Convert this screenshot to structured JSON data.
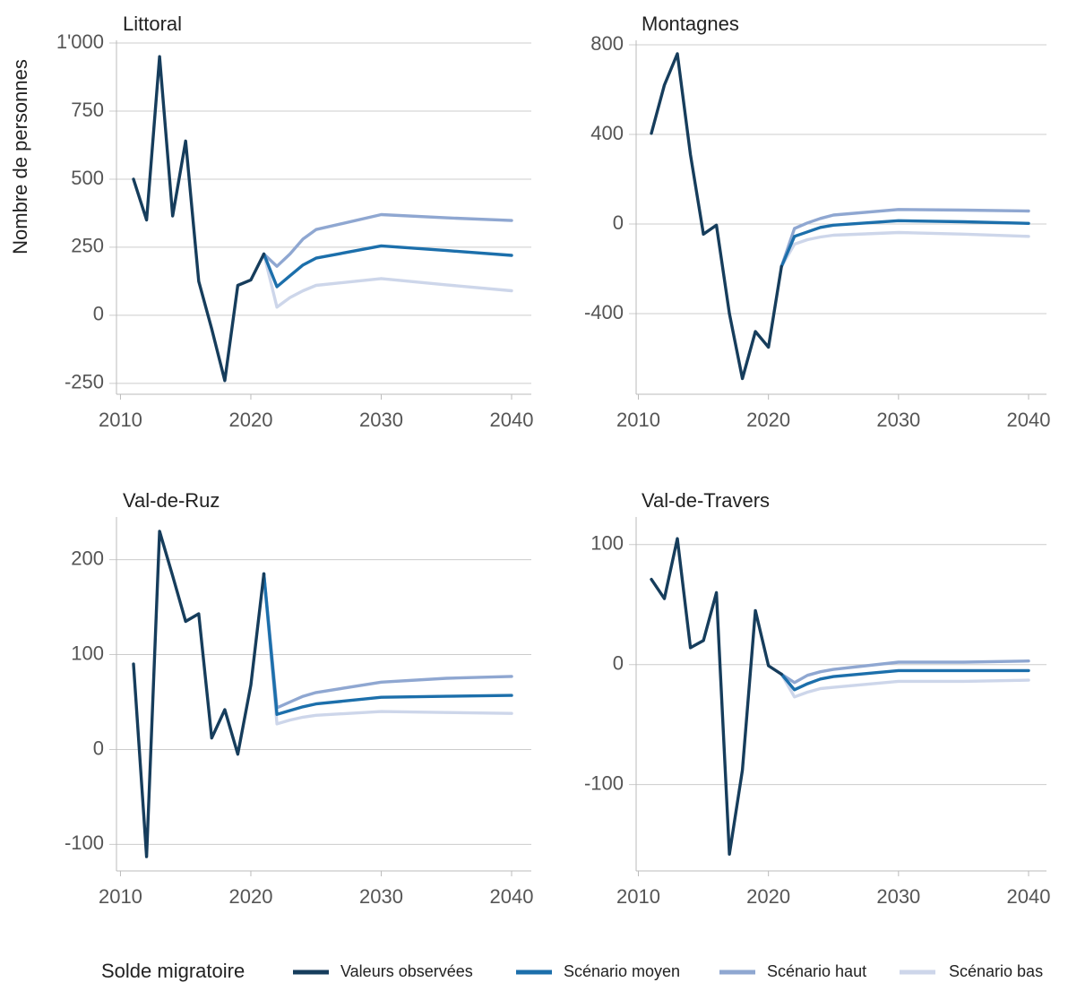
{
  "chart_data": [
    {
      "type": "line",
      "title": "Littoral",
      "ylabel": "Nombre de personnes",
      "xticks": [
        "2010",
        "2020",
        "2030",
        "2040"
      ],
      "yticks": [
        -250,
        0,
        250,
        500,
        750,
        1000
      ],
      "ytick_labels": [
        "-250",
        "0",
        "250",
        "500",
        "750",
        "1'000"
      ],
      "xlim": [
        2009.7,
        2041.5
      ],
      "ylim": [
        -290,
        1010
      ],
      "series": [
        {
          "name": "Valeurs observées",
          "x": [
            2011,
            2012,
            2013,
            2014,
            2015,
            2016,
            2017,
            2018,
            2019,
            2020,
            2021
          ],
          "values": [
            500,
            350,
            950,
            365,
            640,
            125,
            -50,
            -240,
            110,
            130,
            225
          ]
        },
        {
          "name": "Scénario moyen",
          "x": [
            2021,
            2022,
            2023,
            2024,
            2025,
            2030,
            2035,
            2040
          ],
          "values": [
            225,
            105,
            145,
            185,
            210,
            255,
            238,
            220
          ]
        },
        {
          "name": "Scénario haut",
          "x": [
            2021,
            2022,
            2023,
            2024,
            2025,
            2030,
            2035,
            2040
          ],
          "values": [
            225,
            180,
            225,
            280,
            315,
            370,
            358,
            348
          ]
        },
        {
          "name": "Scénario bas",
          "x": [
            2021,
            2022,
            2023,
            2024,
            2025,
            2030,
            2035,
            2040
          ],
          "values": [
            225,
            30,
            65,
            90,
            110,
            135,
            112,
            90
          ]
        }
      ]
    },
    {
      "type": "line",
      "title": "Montagnes",
      "ylabel": "",
      "xticks": [
        "2010",
        "2020",
        "2030",
        "2040"
      ],
      "yticks": [
        -400,
        0,
        400,
        800
      ],
      "ytick_labels": [
        "-400",
        "0",
        "400",
        "800"
      ],
      "xlim": [
        2009.7,
        2041.5
      ],
      "ylim": [
        -760,
        820
      ],
      "series": [
        {
          "name": "Valeurs observées",
          "x": [
            2011,
            2012,
            2013,
            2014,
            2015,
            2016,
            2017,
            2018,
            2019,
            2020,
            2021
          ],
          "values": [
            405,
            620,
            760,
            310,
            -45,
            -5,
            -400,
            -690,
            -480,
            -550,
            -190
          ]
        },
        {
          "name": "Scénario moyen",
          "x": [
            2021,
            2022,
            2023,
            2024,
            2025,
            2030,
            2035,
            2040
          ],
          "values": [
            -190,
            -55,
            -35,
            -15,
            -5,
            15,
            10,
            3
          ]
        },
        {
          "name": "Scénario haut",
          "x": [
            2021,
            2022,
            2023,
            2024,
            2025,
            2030,
            2035,
            2040
          ],
          "values": [
            -190,
            -20,
            5,
            25,
            40,
            65,
            62,
            58
          ]
        },
        {
          "name": "Scénario bas",
          "x": [
            2021,
            2022,
            2023,
            2024,
            2025,
            2030,
            2035,
            2040
          ],
          "values": [
            -190,
            -90,
            -70,
            -58,
            -50,
            -38,
            -45,
            -55
          ]
        }
      ]
    },
    {
      "type": "line",
      "title": "Val-de-Ruz",
      "ylabel": "",
      "xticks": [
        "2010",
        "2020",
        "2030",
        "2040"
      ],
      "yticks": [
        -100,
        0,
        100,
        200
      ],
      "ytick_labels": [
        "-100",
        "0",
        "100",
        "200"
      ],
      "xlim": [
        2009.7,
        2041.5
      ],
      "ylim": [
        -128,
        245
      ],
      "series": [
        {
          "name": "Valeurs observées",
          "x": [
            2011,
            2012,
            2013,
            2014,
            2015,
            2016,
            2017,
            2018,
            2019,
            2020,
            2021
          ],
          "values": [
            90,
            -113,
            230,
            183,
            135,
            143,
            12,
            42,
            -5,
            68,
            185
          ]
        },
        {
          "name": "Scénario moyen",
          "x": [
            2021,
            2022,
            2023,
            2024,
            2025,
            2030,
            2035,
            2040
          ],
          "values": [
            185,
            37,
            41,
            45,
            48,
            55,
            56,
            57
          ]
        },
        {
          "name": "Scénario haut",
          "x": [
            2021,
            2022,
            2023,
            2024,
            2025,
            2030,
            2035,
            2040
          ],
          "values": [
            185,
            44,
            50,
            56,
            60,
            71,
            75,
            77
          ]
        },
        {
          "name": "Scénario bas",
          "x": [
            2021,
            2022,
            2023,
            2024,
            2025,
            2030,
            2035,
            2040
          ],
          "values": [
            185,
            27,
            31,
            34,
            36,
            40,
            39,
            38
          ]
        }
      ]
    },
    {
      "type": "line",
      "title": "Val-de-Travers",
      "ylabel": "",
      "xticks": [
        "2010",
        "2020",
        "2030",
        "2040"
      ],
      "yticks": [
        -100,
        0,
        100
      ],
      "ytick_labels": [
        "-100",
        "0",
        "100"
      ],
      "xlim": [
        2009.7,
        2041.5
      ],
      "ylim": [
        -172,
        123
      ],
      "series": [
        {
          "name": "Valeurs observées",
          "x": [
            2011,
            2012,
            2013,
            2014,
            2015,
            2016,
            2017,
            2018,
            2019,
            2020,
            2021
          ],
          "values": [
            71,
            55,
            105,
            14,
            20,
            60,
            -158,
            -88,
            45,
            -1,
            -8
          ]
        },
        {
          "name": "Scénario moyen",
          "x": [
            2021,
            2022,
            2023,
            2024,
            2025,
            2030,
            2035,
            2040
          ],
          "values": [
            -8,
            -21,
            -16,
            -12,
            -10,
            -5,
            -5,
            -5
          ]
        },
        {
          "name": "Scénario haut",
          "x": [
            2021,
            2022,
            2023,
            2024,
            2025,
            2030,
            2035,
            2040
          ],
          "values": [
            -8,
            -15,
            -9,
            -6,
            -4,
            2,
            2,
            3
          ]
        },
        {
          "name": "Scénario bas",
          "x": [
            2021,
            2022,
            2023,
            2024,
            2025,
            2030,
            2035,
            2040
          ],
          "values": [
            -8,
            -27,
            -23,
            -20,
            -19,
            -14,
            -14,
            -13
          ]
        }
      ]
    }
  ],
  "legend": {
    "title": "Solde migratoire",
    "position": "bottom",
    "items": [
      {
        "label": "Valeurs observées",
        "color": "#163d5c"
      },
      {
        "label": "Scénario moyen",
        "color": "#1c6fab"
      },
      {
        "label": "Scénario haut",
        "color": "#8fa7d1"
      },
      {
        "label": "Scénario bas",
        "color": "#cdd6ea"
      }
    ]
  },
  "colors": {
    "Valeurs observées": "#163d5c",
    "Scénario moyen": "#1c6fab",
    "Scénario haut": "#8fa7d1",
    "Scénario bas": "#cdd6ea"
  }
}
